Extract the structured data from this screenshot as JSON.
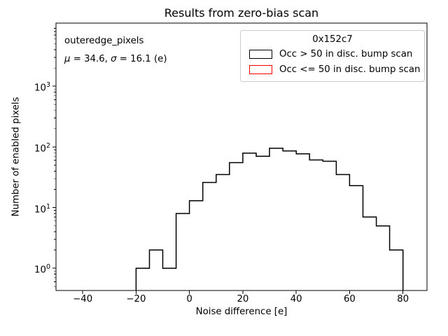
{
  "figure": {
    "background": "#ffffff",
    "spine_color": "#000000"
  },
  "annotation": {
    "dataset": "outeredge_pixels",
    "mu": 34.6,
    "sigma": 16.1,
    "stats_segments": [
      {
        "text": "μ",
        "italic": true
      },
      {
        "text": " = 34.6, ",
        "italic": false
      },
      {
        "text": "σ",
        "italic": true
      },
      {
        "text": " = 16.1 (e)",
        "italic": false
      }
    ]
  },
  "legend": {
    "title": "0x152c7",
    "entries": [
      {
        "label": "Occ > 50 in disc. bump scan",
        "color": "#000000"
      },
      {
        "label": "Occ <= 50 in disc. bump scan",
        "color": "#ff0000"
      }
    ]
  },
  "chart_data": {
    "type": "histogram",
    "title": "Results from zero-bias scan",
    "xlabel": "Noise difference [e]",
    "ylabel": "Number of enabled pixels",
    "yscale": "log",
    "grid": false,
    "legend_position": "upper right",
    "xlim": [
      -50,
      89
    ],
    "ylim": [
      0.43,
      11000
    ],
    "xticks": [
      -40,
      -20,
      0,
      20,
      40,
      60,
      80
    ],
    "yticks": [
      1,
      10,
      100,
      1000
    ],
    "bin_width": 5,
    "series": [
      {
        "name": "Occ > 50 in disc. bump scan",
        "color": "#000000",
        "bin_edges": [
          -20,
          -15,
          -10,
          -5,
          0,
          5,
          10,
          15,
          20,
          25,
          30,
          35,
          40,
          45,
          50,
          55,
          60,
          65,
          70,
          75,
          80
        ],
        "counts": [
          1,
          2,
          1,
          8,
          13,
          26,
          35,
          55,
          79,
          70,
          95,
          86,
          77,
          61,
          58,
          35,
          23,
          7,
          5,
          2
        ]
      },
      {
        "name": "Occ <= 50 in disc. bump scan",
        "color": "#ff0000",
        "bin_edges": [],
        "counts": []
      }
    ]
  }
}
